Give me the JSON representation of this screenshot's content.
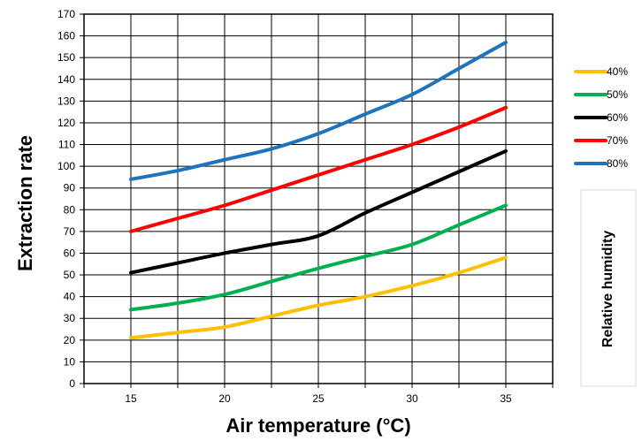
{
  "chart_data": {
    "type": "line",
    "title": "",
    "xlabel": "Air temperature (°C)",
    "ylabel": "Extraction rate",
    "legend_title": "Relative humidity",
    "legend_position": "right",
    "grid": true,
    "xlim": [
      12.5,
      37.5
    ],
    "ylim": [
      0,
      170
    ],
    "xticks": [
      15,
      20,
      25,
      30,
      35
    ],
    "yticks": [
      0,
      10,
      20,
      30,
      40,
      50,
      60,
      70,
      80,
      90,
      100,
      110,
      120,
      130,
      140,
      150,
      160,
      170
    ],
    "x": [
      15,
      17.5,
      20,
      22.5,
      25,
      27.5,
      30,
      32.5,
      35
    ],
    "series": [
      {
        "name": "40%",
        "color": "#FFC000",
        "values": [
          21,
          23.5,
          26,
          31,
          36,
          40,
          45,
          51,
          58
        ]
      },
      {
        "name": "50%",
        "color": "#00B050",
        "values": [
          34,
          37,
          41,
          47,
          53,
          58.5,
          64,
          73,
          82
        ]
      },
      {
        "name": "60%",
        "color": "#000000",
        "values": [
          51,
          55.5,
          60,
          64,
          68,
          78.5,
          88,
          97.5,
          107
        ]
      },
      {
        "name": "70%",
        "color": "#FF0000",
        "values": [
          70,
          76,
          82,
          89,
          96,
          103,
          110,
          118,
          127
        ]
      },
      {
        "name": "80%",
        "color": "#1E73BE",
        "values": [
          94,
          98,
          103,
          108,
          115,
          124,
          133,
          145,
          157
        ]
      }
    ]
  }
}
